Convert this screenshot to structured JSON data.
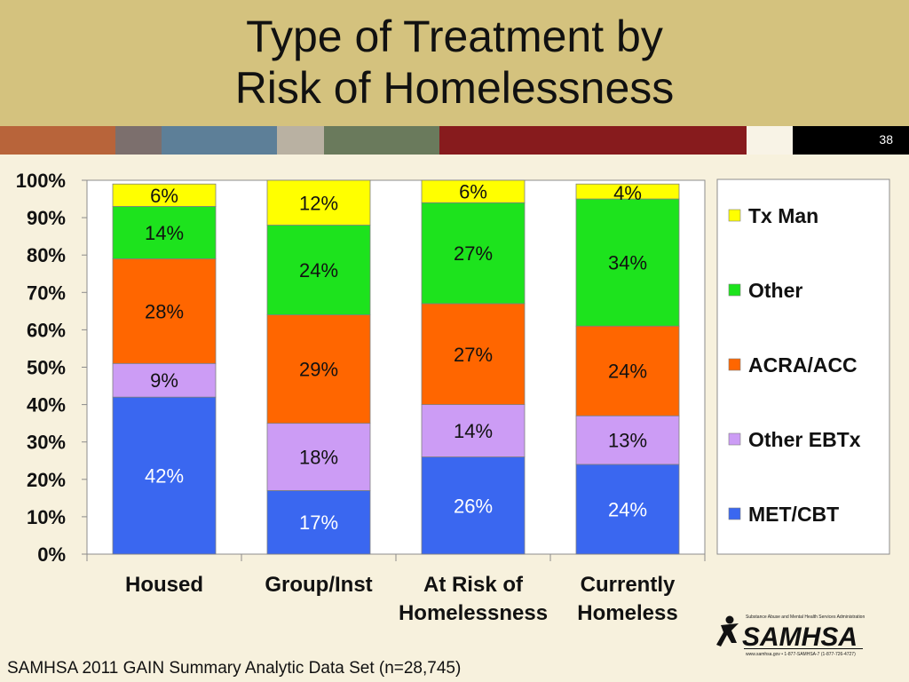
{
  "slide": {
    "title_line1": "Type of Treatment by",
    "title_line2": "Risk of Homelessness",
    "slide_number": "38",
    "source": "SAMHSA 2011 GAIN Summary Analytic Data Set (n=28,745)",
    "logo_text": "SAMHSA",
    "logo_caption": "Substance Abuse and Mental Health Services Administration",
    "logo_footer": "www.samhsa.gov • 1-877-SAMHSA-7 (1-877-726-4727)"
  },
  "colors": {
    "header_bg": "#d4c27e",
    "slide_bg": "#f7f1dd",
    "strip": [
      "#b8643a",
      "#7c6f6d",
      "#5d7f98",
      "#b9b1a2",
      "#6a7a5c",
      "#871b1d",
      "#f8f3e6",
      "#000000"
    ]
  },
  "chart_data": {
    "type": "bar",
    "stacked": true,
    "title": "Type of Treatment by Risk of Homelessness",
    "categories": [
      "Housed",
      "Group/Inst",
      "At Risk of Homelessness",
      "Currently Homeless"
    ],
    "category_lines": [
      [
        "Housed"
      ],
      [
        "Group/Inst"
      ],
      [
        "At Risk of",
        "Homelessness"
      ],
      [
        "Currently",
        "Homeless"
      ]
    ],
    "ylim": [
      0,
      100
    ],
    "yticks": [
      "0%",
      "10%",
      "20%",
      "30%",
      "40%",
      "50%",
      "60%",
      "70%",
      "80%",
      "90%",
      "100%"
    ],
    "grid": false,
    "legend_position": "right",
    "series": [
      {
        "name": "MET/CBT",
        "color": "#3a67f0",
        "label_color": "#ffffff",
        "values": [
          42,
          17,
          26,
          24
        ]
      },
      {
        "name": "Other EBTx",
        "color": "#cc9cf5",
        "label_color": "#111111",
        "values": [
          9,
          18,
          14,
          13
        ]
      },
      {
        "name": "ACRA/ACC",
        "color": "#ff6600",
        "label_color": "#111111",
        "values": [
          28,
          29,
          27,
          24
        ]
      },
      {
        "name": "Other",
        "color": "#1de31d",
        "label_color": "#111111",
        "values": [
          14,
          24,
          27,
          34
        ]
      },
      {
        "name": "Tx Man",
        "color": "#ffff00",
        "label_color": "#111111",
        "values": [
          6,
          12,
          6,
          4
        ]
      }
    ],
    "data_labels": [
      [
        "42%",
        "17%",
        "26%",
        "24%"
      ],
      [
        "9%",
        "18%",
        "14%",
        "13%"
      ],
      [
        "28%",
        "29%",
        "27%",
        "24%"
      ],
      [
        "14%",
        "24%",
        "27%",
        "34%"
      ],
      [
        "6%",
        "12%",
        "6%",
        "4%"
      ]
    ]
  }
}
